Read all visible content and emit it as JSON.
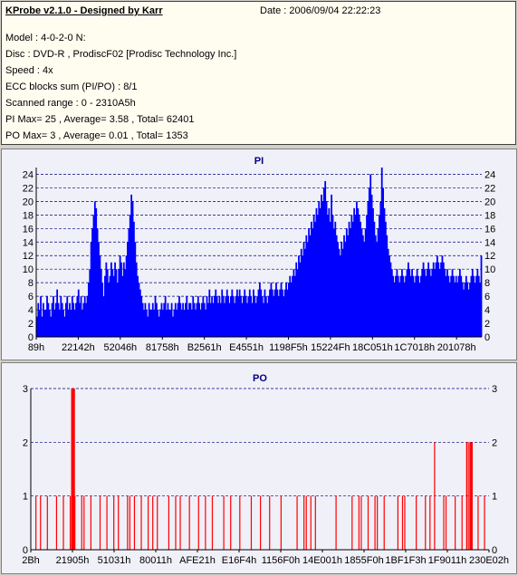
{
  "header": {
    "title": "KProbe v2.1.0 - Designed by Karr",
    "date": "Date : 2006/09/04 22:22:23",
    "lines": [
      "Model : 4-0-2-0 N:",
      "Disc : DVD-R , ProdiscF02 [Prodisc Technology Inc.]",
      "Speed : 4x",
      "ECC blocks sum (PI/PO) : 8/1",
      "Scanned range : 0 - 2310A5h",
      "PI Max= 25 , Average= 3.58 , Total= 62401",
      "PO Max= 3 , Average= 0.01 , Total= 1353"
    ]
  },
  "colors": {
    "pi": "#0000ff",
    "po": "#ff0000",
    "grid": "#000080",
    "bg": "#f0f0f8"
  },
  "chart_data": [
    {
      "type": "area",
      "title": "PI",
      "ylim": [
        0,
        25
      ],
      "y_ticks": [
        0,
        2,
        4,
        6,
        8,
        10,
        12,
        14,
        16,
        18,
        20,
        22,
        24
      ],
      "x_tick_labels": [
        "89h",
        "22142h",
        "52046h",
        "81758h",
        "B2561h",
        "E4551h",
        "1198F5h",
        "15224Fh",
        "18C051h",
        "1C7018h",
        "201078h"
      ],
      "samples": [
        3,
        5,
        4,
        6,
        3,
        5,
        4,
        4,
        6,
        5,
        4,
        3,
        5,
        6,
        4,
        5,
        7,
        5,
        4,
        6,
        5,
        4,
        3,
        5,
        6,
        4,
        5,
        4,
        6,
        5,
        4,
        5,
        6,
        7,
        5,
        6,
        4,
        5,
        6,
        5,
        6,
        8,
        10,
        14,
        16,
        18,
        20,
        19,
        16,
        14,
        12,
        10,
        8,
        6,
        9,
        11,
        10,
        8,
        9,
        11,
        10,
        9,
        11,
        10,
        8,
        10,
        12,
        11,
        9,
        11,
        10,
        12,
        14,
        16,
        18,
        21,
        20,
        17,
        14,
        11,
        9,
        8,
        7,
        6,
        5,
        4,
        5,
        4,
        3,
        5,
        4,
        4,
        5,
        4,
        6,
        5,
        4,
        3,
        4,
        5,
        4,
        5,
        6,
        4,
        5,
        4,
        4,
        5,
        3,
        4,
        5,
        4,
        5,
        6,
        5,
        4,
        5,
        4,
        5,
        6,
        4,
        5,
        5,
        4,
        6,
        5,
        4,
        5,
        6,
        5,
        4,
        5,
        6,
        5,
        4,
        6,
        5,
        7,
        5,
        6,
        5,
        6,
        7,
        6,
        5,
        6,
        5,
        7,
        6,
        5,
        6,
        7,
        6,
        5,
        6,
        7,
        6,
        5,
        6,
        7,
        6,
        7,
        6,
        5,
        6,
        7,
        6,
        5,
        6,
        7,
        6,
        5,
        7,
        6,
        5,
        6,
        7,
        8,
        7,
        6,
        5,
        7,
        6,
        5,
        6,
        7,
        8,
        7,
        6,
        7,
        8,
        7,
        6,
        7,
        8,
        7,
        6,
        7,
        8,
        7,
        8,
        9,
        8,
        9,
        10,
        9,
        11,
        10,
        12,
        11,
        13,
        12,
        14,
        13,
        15,
        14,
        16,
        15,
        17,
        16,
        18,
        17,
        19,
        18,
        20,
        19,
        21,
        20,
        22,
        23,
        20,
        18,
        19,
        17,
        21,
        18,
        16,
        17,
        15,
        14,
        13,
        12,
        14,
        13,
        15,
        14,
        16,
        15,
        17,
        16,
        18,
        17,
        19,
        18,
        20,
        19,
        18,
        17,
        16,
        15,
        14,
        16,
        18,
        20,
        22,
        24,
        21,
        19,
        17,
        15,
        14,
        16,
        18,
        20,
        25,
        22,
        19,
        17,
        15,
        13,
        12,
        11,
        10,
        9,
        8,
        9,
        10,
        9,
        8,
        9,
        10,
        9,
        8,
        9,
        10,
        11,
        10,
        9,
        10,
        9,
        8,
        9,
        10,
        9,
        8,
        9,
        10,
        11,
        10,
        9,
        10,
        11,
        10,
        9,
        10,
        11,
        10,
        11,
        12,
        11,
        10,
        11,
        12,
        11,
        10,
        9,
        10,
        9,
        8,
        9,
        10,
        9,
        8,
        9,
        8,
        9,
        10,
        9,
        8,
        7,
        8,
        9,
        8,
        7,
        8,
        9,
        10,
        9,
        8,
        9,
        10,
        9,
        8,
        12
      ]
    },
    {
      "type": "bar",
      "title": "PO",
      "ylim": [
        0,
        3
      ],
      "y_ticks": [
        0,
        1,
        2,
        3
      ],
      "x_tick_labels": [
        "2Bh",
        "21905h",
        "51031h",
        "80011h",
        "AFE21h",
        "E16F4h",
        "1156F0h",
        "14E001h",
        "1855F0h",
        "1BF1F3h",
        "1F9011h",
        "230E02h"
      ],
      "spikes": [
        [
          0.01,
          1
        ],
        [
          0.02,
          1
        ],
        [
          0.035,
          1
        ],
        [
          0.055,
          1
        ],
        [
          0.07,
          1
        ],
        [
          0.085,
          1
        ],
        [
          0.095,
          1
        ],
        [
          0.11,
          1
        ],
        [
          0.115,
          1
        ],
        [
          0.13,
          1
        ],
        [
          0.15,
          1
        ],
        [
          0.165,
          1
        ],
        [
          0.18,
          1
        ],
        [
          0.19,
          1
        ],
        [
          0.21,
          1
        ],
        [
          0.215,
          1
        ],
        [
          0.225,
          1
        ],
        [
          0.24,
          1
        ],
        [
          0.255,
          1
        ],
        [
          0.265,
          1
        ],
        [
          0.275,
          1
        ],
        [
          0.3,
          1
        ],
        [
          0.315,
          1
        ],
        [
          0.325,
          1
        ],
        [
          0.345,
          1
        ],
        [
          0.365,
          1
        ],
        [
          0.38,
          1
        ],
        [
          0.395,
          1
        ],
        [
          0.42,
          1
        ],
        [
          0.435,
          1
        ],
        [
          0.455,
          1
        ],
        [
          0.48,
          1
        ],
        [
          0.5,
          1
        ],
        [
          0.52,
          1
        ],
        [
          0.545,
          1
        ],
        [
          0.58,
          1
        ],
        [
          0.595,
          1
        ],
        [
          0.6,
          1
        ],
        [
          0.61,
          1
        ],
        [
          0.62,
          1
        ],
        [
          0.665,
          1
        ],
        [
          0.7,
          1
        ],
        [
          0.715,
          1
        ],
        [
          0.72,
          1
        ],
        [
          0.735,
          1
        ],
        [
          0.75,
          1
        ],
        [
          0.755,
          1
        ],
        [
          0.77,
          1
        ],
        [
          0.8,
          1
        ],
        [
          0.81,
          1
        ],
        [
          0.815,
          1
        ],
        [
          0.84,
          1
        ],
        [
          0.86,
          1
        ],
        [
          0.87,
          1
        ],
        [
          0.9,
          1
        ],
        [
          0.905,
          1
        ],
        [
          0.925,
          1
        ],
        [
          0.94,
          1
        ],
        [
          0.96,
          1
        ],
        [
          0.975,
          1
        ],
        [
          0.989,
          1
        ]
      ],
      "spikes_tall": [
        [
          0.088,
          3
        ],
        [
          0.089,
          3
        ],
        [
          0.0905,
          3
        ],
        [
          0.092,
          3
        ],
        [
          0.093,
          3
        ],
        [
          0.094,
          3
        ],
        [
          0.95,
          2
        ],
        [
          0.951,
          2
        ],
        [
          0.955,
          2
        ],
        [
          0.958,
          2
        ],
        [
          0.96,
          2
        ],
        [
          0.962,
          2
        ],
        [
          0.88,
          2
        ]
      ]
    }
  ]
}
